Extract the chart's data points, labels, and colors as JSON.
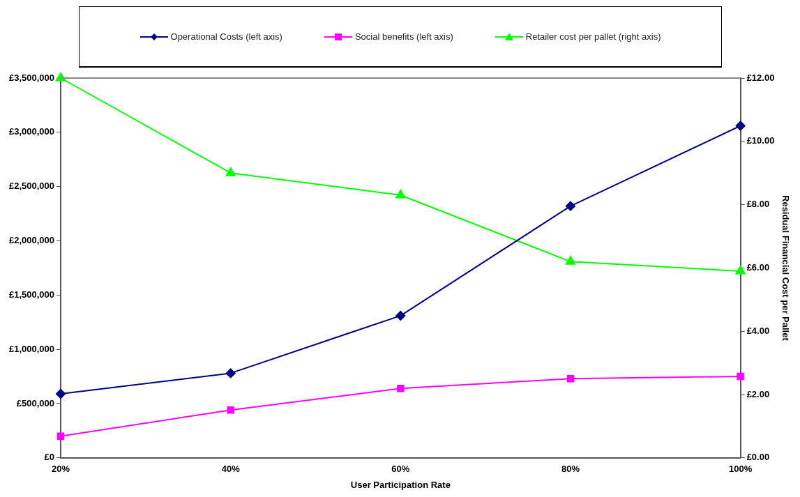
{
  "chart_data": {
    "type": "line",
    "xlabel": "User Participation Rate",
    "y2label": "Residual Financial Cost per Pallet",
    "categories": [
      "20%",
      "40%",
      "60%",
      "80%",
      "100%"
    ],
    "series": [
      {
        "name": "Operational Costs (left axis)",
        "color": "#000080",
        "marker": "diamond",
        "values": [
          590000,
          780000,
          1310000,
          2320000,
          3060000
        ]
      },
      {
        "name": "Social benefits (left axis)",
        "color": "#ff00ff",
        "marker": "square",
        "values": [
          200000,
          440000,
          640000,
          730000,
          750000
        ]
      },
      {
        "name": "Retailer cost per pallet (right axis)",
        "color": "#00ff00",
        "marker": "triangle",
        "axis": "y2",
        "values": [
          12.0,
          9.0,
          8.3,
          6.2,
          5.9
        ]
      }
    ],
    "ylim": [
      0,
      3500000
    ],
    "yticks": [
      {
        "value": 0,
        "label": "£0"
      },
      {
        "value": 500000,
        "label": "£500,000"
      },
      {
        "value": 1000000,
        "label": "£1,000,000"
      },
      {
        "value": 1500000,
        "label": "£1,500,000"
      },
      {
        "value": 2000000,
        "label": "£2,000,000"
      },
      {
        "value": 2500000,
        "label": "£2,500,000"
      },
      {
        "value": 3000000,
        "label": "£3,000,000"
      },
      {
        "value": 3500000,
        "label": "£3,500,000"
      }
    ],
    "y2lim": [
      0,
      12
    ],
    "y2ticks": [
      {
        "value": 0,
        "label": "£0.00"
      },
      {
        "value": 2,
        "label": "£2.00"
      },
      {
        "value": 4,
        "label": "£4.00"
      },
      {
        "value": 6,
        "label": "£6.00"
      },
      {
        "value": 8,
        "label": "£8.00"
      },
      {
        "value": 10,
        "label": "£10.00"
      },
      {
        "value": 12,
        "label": "£12.00"
      }
    ],
    "grid": false,
    "legend": "top",
    "line_style": "solid"
  }
}
